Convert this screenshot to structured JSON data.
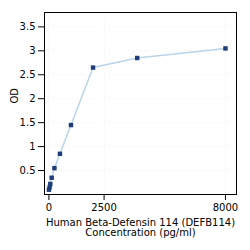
{
  "chart_data": {
    "type": "line",
    "xlabel": "Human Beta-Defensin 114 (DEFB114)\nConcentration (pg/ml)",
    "ylabel": "OD",
    "x": [
      0,
      31.25,
      62.5,
      125,
      250,
      500,
      1000,
      2000,
      4000,
      8000
    ],
    "series": [
      {
        "type": "line",
        "color": "#b8d4ea",
        "values": [
          0.1,
          0.15,
          0.22,
          0.35,
          0.55,
          0.85,
          1.45,
          2.65,
          2.85,
          3.05
        ]
      },
      {
        "type": "scatter",
        "color": "#1f3d7a",
        "marker": "square",
        "values": [
          0.1,
          0.15,
          0.22,
          0.35,
          0.55,
          0.85,
          1.45,
          2.65,
          2.85,
          3.05
        ]
      }
    ],
    "xlim": [
      -200,
      8500
    ],
    "xticks": [
      0,
      2500,
      8000
    ],
    "ylim": [
      0,
      3.8
    ],
    "yticks": [
      0.5,
      1,
      1.5,
      2,
      2.5,
      3,
      3.5
    ],
    "grid": true
  }
}
